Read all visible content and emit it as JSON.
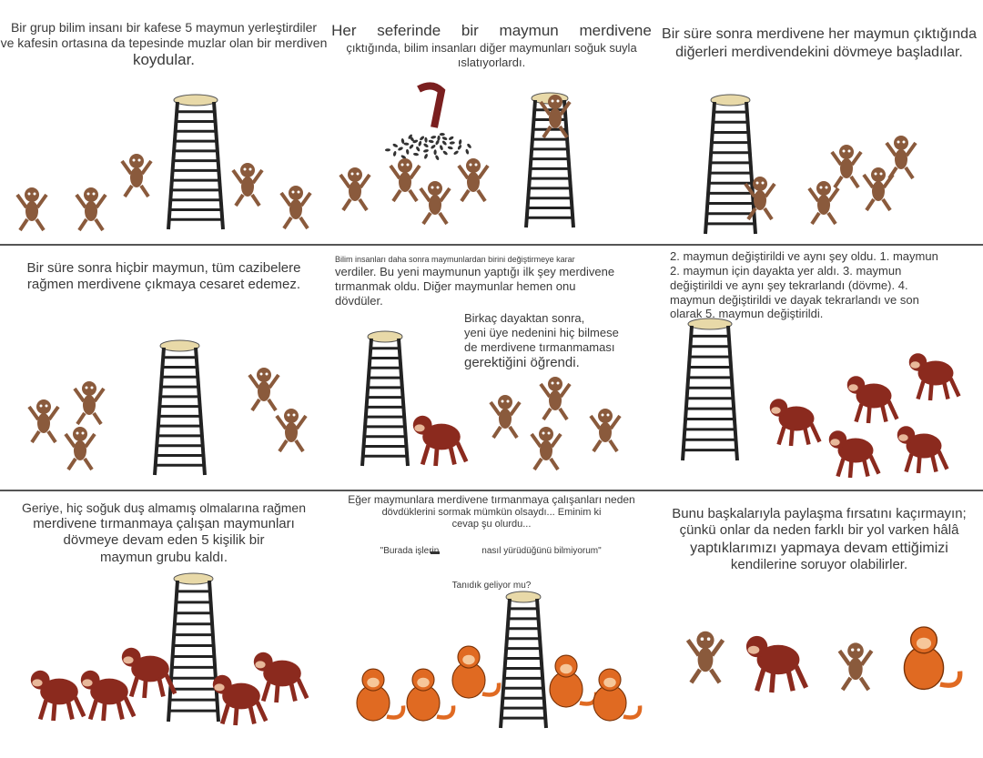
{
  "panels": [
    {
      "lines": [
        "Bir grup bilim insanı bir kafese 5 maymun yerleştirdiler",
        "ve kafesin ortasına da tepesinde muzlar olan bir merdiven",
        "koydular."
      ]
    },
    {
      "lines": [
        "Her seferinde bir maymun merdivene",
        "çıktığında, bilim insanları diğer maymunları soğuk suyla",
        "ıslatıyorlardı."
      ]
    },
    {
      "lines": [
        "Bir süre sonra merdivene her maymun çıktığında",
        "diğerleri merdivendekini dövmeye başladılar."
      ]
    },
    {
      "lines": [
        "Bir süre sonra hiçbir maymun, tüm cazibelere",
        "rağmen merdivene çıkmaya cesaret edemez."
      ]
    },
    {
      "lines": [
        "Bilim insanları daha sonra maymunlardan birini değiştirmeye karar",
        "verdiler. Bu yeni maymunun yaptığı ilk şey merdivene",
        "tırmanmak oldu. Diğer maymunlar hemen onu",
        "dövdüler."
      ],
      "lines2": [
        "Birkaç dayaktan sonra,",
        "yeni üye nedenini hiç bilmese",
        "de merdivene tırmanmaması",
        "gerektiğini öğrendi."
      ]
    },
    {
      "lines": [
        "2. maymun değiştirildi ve aynı şey oldu. 1. maymun",
        "2. maymun için dayakta yer aldı. 3. maymun",
        "değiştirildi ve aynı şey tekrarlandı (dövme). 4.",
        "maymun değiştirildi ve dayak tekrarlandı ve son",
        "olarak 5. maymun değiştirildi."
      ]
    },
    {
      "lines": [
        "Geriye, hiç soğuk duş almamış olmalarına rağmen",
        "merdivene tırmanmaya çalışan maymunları",
        "dövmeye devam eden 5 kişilik bir",
        "maymun grubu kaldı."
      ]
    },
    {
      "lines": [
        "Eğer maymunlara merdivene tırmanmaya çalışanları neden",
        "dövdüklerini sormak mümkün olsaydı... Eminim ki",
        "cevap şu olurdu..."
      ],
      "quote_left": "\"Burada işlerin",
      "quote_right": "nasıl yürüdüğünü bilmiyorum\"",
      "question": "Tanıdık geliyor mu?"
    },
    {
      "lines": [
        "Bunu başkalarıyla paylaşma fırsatını kaçırmayın;",
        "çünkü onlar da neden farklı bir yol varken hâlâ",
        "yaptıklarımızı yapmaya devam ettiğimizi",
        "kendilerine soruyor olabilirler."
      ]
    }
  ],
  "colors": {
    "small_monkey": "#8a5a3c",
    "big_monkey": "#8b2a1e",
    "orange_monkey": "#e06a22",
    "ladder": "#222222",
    "divider": "#555555"
  }
}
